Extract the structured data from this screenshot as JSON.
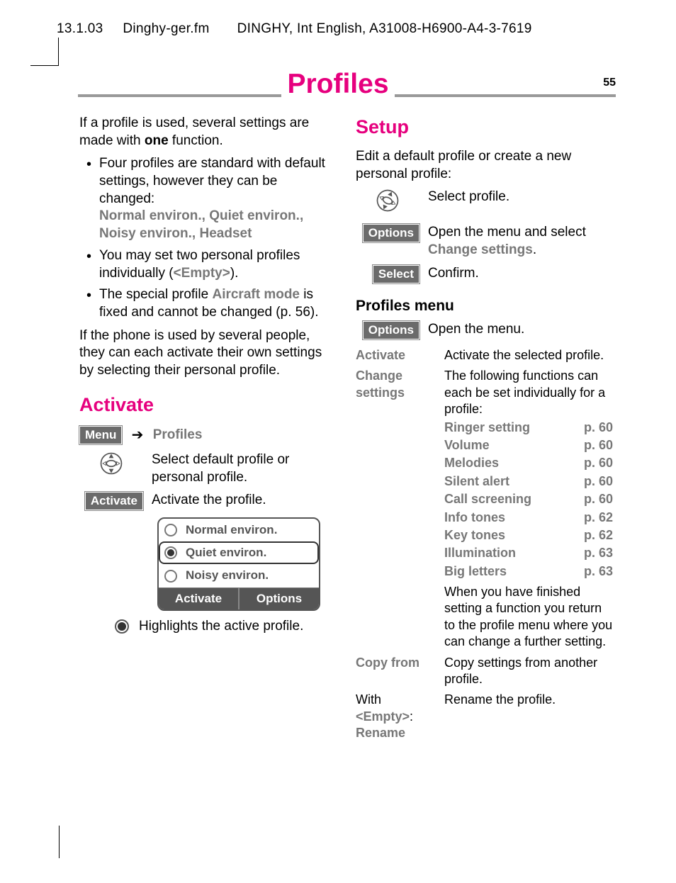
{
  "header": {
    "date": "13.1.03",
    "filename": "Dinghy-ger.fm",
    "product": "DINGHY, Int English, A31008-H6900-A4-3-7619"
  },
  "page_number": "55",
  "page_title": "Profiles",
  "colors": {
    "magenta": "#e6007e",
    "gray_text": "#777777",
    "button_bg": "#6b6b6b",
    "rule": "#999999"
  },
  "left": {
    "intro_a": "If a profile is used, several settings are made with ",
    "intro_bold": "one",
    "intro_b": " function.",
    "bullets": {
      "b1_a": "Four profiles are standard with default settings, however they can be changed:",
      "b1_list": "Normal environ., Quiet environ., Noisy environ., Headset",
      "b2_a": "You may set two personal profiles individually (",
      "b2_empty": "<Empty>",
      "b2_b": ").",
      "b3_a": "The special profile ",
      "b3_mode": "Aircraft mode",
      "b3_b": " is fixed and cannot be changed (p. 56)."
    },
    "multi_user": "If the phone is used by several people, they can each activate their own settings by selecting their personal profile.",
    "activate_title": "Activate",
    "menu_btn": "Menu",
    "profiles_label": "Profiles",
    "select_text": "Select default profile or personal profile.",
    "activate_btn": "Activate",
    "activate_text": "Activate the profile.",
    "phone": {
      "row1": "Normal environ.",
      "row2": "Quiet environ.",
      "row3": "Noisy environ.",
      "sk_left": "Activate",
      "sk_right": "Options"
    },
    "legend": "Highlights the active profile."
  },
  "right": {
    "setup_title": "Setup",
    "setup_intro": "Edit a default profile or create a new personal profile:",
    "step1": "Select profile.",
    "options_btn": "Options",
    "step2_a": "Open the menu and select ",
    "step2_b": "Change settings",
    "step2_c": ".",
    "select_btn": "Select",
    "step3": "Confirm.",
    "profiles_menu_title": "Profiles menu",
    "open_menu": "Open the menu.",
    "table": {
      "activate_lbl": "Activate",
      "activate_desc": "Activate the selected profile.",
      "change_lbl": "Change settings",
      "change_desc": "The following functions can each be set individually for a profile:",
      "functions": [
        {
          "name": "Ringer setting",
          "page": "p. 60"
        },
        {
          "name": "Volume",
          "page": "p. 60"
        },
        {
          "name": "Melodies",
          "page": "p. 60"
        },
        {
          "name": "Silent alert",
          "page": "p. 60"
        },
        {
          "name": "Call screening",
          "page": "p. 60"
        },
        {
          "name": "Info tones",
          "page": "p. 62"
        },
        {
          "name": "Key tones",
          "page": "p. 62"
        },
        {
          "name": "Illumination",
          "page": "p. 63"
        },
        {
          "name": "Big letters",
          "page": "p. 63"
        }
      ],
      "change_note": "When you have finished setting a function you return to the profile menu where you can change a further setting.",
      "copy_lbl": "Copy from",
      "copy_desc": "Copy settings from another profile.",
      "rename_lbl_a": "With",
      "rename_lbl_b": "<Empty>",
      "rename_lbl_c": "Rename",
      "rename_desc": "Rename the profile."
    }
  }
}
